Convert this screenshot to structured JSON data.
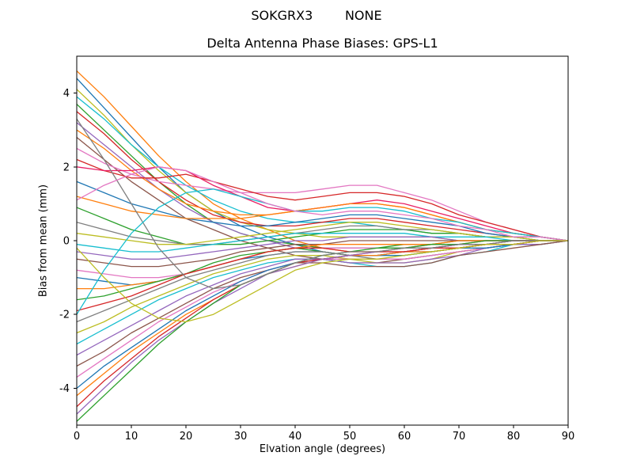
{
  "figure": {
    "suptitle": "SOKGRX3        NONE",
    "title": "Delta Antenna Phase Biases: GPS-L1",
    "xlabel": "Elvation angle (degrees)",
    "ylabel": "Bias from mean (mm)"
  },
  "chart_data": {
    "type": "line",
    "suptitle": "SOKGRX3        NONE",
    "title": "Delta Antenna Phase Biases: GPS-L1",
    "xlabel": "Elvation angle (degrees)",
    "ylabel": "Bias from mean (mm)",
    "xlim": [
      0,
      90
    ],
    "ylim": [
      -5,
      5
    ],
    "x_ticks": [
      0,
      10,
      20,
      30,
      40,
      50,
      60,
      70,
      80,
      90
    ],
    "y_ticks": [
      -4,
      -2,
      0,
      2,
      4
    ],
    "grid": false,
    "legend": "none",
    "frame_color": "#000000",
    "background": "#ffffff",
    "x": [
      0,
      5,
      10,
      15,
      20,
      25,
      30,
      35,
      40,
      45,
      50,
      55,
      60,
      65,
      70,
      75,
      80,
      85,
      90
    ],
    "series": [
      {
        "color": "#ff7f0e",
        "values": [
          4.6,
          3.9,
          3.1,
          2.3,
          1.6,
          1.0,
          0.6,
          0.3,
          0.0,
          -0.2,
          -0.3,
          -0.3,
          -0.2,
          -0.1,
          -0.1,
          0.0,
          0.0,
          0.0,
          0.0
        ]
      },
      {
        "color": "#1f77b4",
        "values": [
          4.4,
          3.6,
          2.8,
          2.0,
          1.3,
          0.8,
          0.4,
          0.1,
          -0.1,
          -0.3,
          -0.4,
          -0.4,
          -0.3,
          -0.2,
          -0.1,
          -0.1,
          0.0,
          0.0,
          0.0
        ]
      },
      {
        "color": "#bcbd22",
        "values": [
          4.1,
          3.4,
          2.6,
          1.9,
          1.3,
          0.8,
          0.5,
          0.3,
          0.2,
          0.1,
          0.1,
          0.1,
          0.1,
          0.1,
          0.0,
          0.0,
          0.0,
          0.0,
          0.0
        ]
      },
      {
        "color": "#17becf",
        "values": [
          3.9,
          3.3,
          2.6,
          2.0,
          1.5,
          1.1,
          0.8,
          0.6,
          0.5,
          0.5,
          0.5,
          0.4,
          0.3,
          0.2,
          0.2,
          0.1,
          0.1,
          0.0,
          0.0
        ]
      },
      {
        "color": "#2ca02c",
        "values": [
          3.7,
          3.0,
          2.3,
          1.6,
          1.0,
          0.5,
          0.2,
          0.0,
          -0.1,
          -0.2,
          -0.2,
          -0.2,
          -0.1,
          -0.1,
          0.0,
          0.0,
          0.0,
          0.0,
          0.0
        ]
      },
      {
        "color": "#d62728",
        "values": [
          3.5,
          2.9,
          2.2,
          1.6,
          1.1,
          0.7,
          0.5,
          0.4,
          0.4,
          0.5,
          0.6,
          0.6,
          0.5,
          0.4,
          0.3,
          0.2,
          0.1,
          0.1,
          0.0
        ]
      },
      {
        "color": "#9467bd",
        "values": [
          3.2,
          2.6,
          2.0,
          1.4,
          0.9,
          0.5,
          0.2,
          0.0,
          -0.2,
          -0.3,
          -0.4,
          -0.4,
          -0.3,
          -0.2,
          -0.1,
          -0.1,
          0.0,
          0.0,
          0.0
        ]
      },
      {
        "color": "#ff7f0e",
        "values": [
          3.0,
          2.5,
          1.9,
          1.4,
          1.0,
          0.8,
          0.7,
          0.7,
          0.8,
          0.9,
          1.0,
          1.0,
          0.9,
          0.7,
          0.5,
          0.3,
          0.2,
          0.1,
          0.0
        ]
      },
      {
        "color": "#8c564b",
        "values": [
          2.8,
          2.2,
          1.6,
          1.1,
          0.6,
          0.3,
          0.0,
          -0.2,
          -0.4,
          -0.5,
          -0.6,
          -0.6,
          -0.5,
          -0.4,
          -0.3,
          -0.2,
          -0.1,
          0.0,
          0.0
        ]
      },
      {
        "color": "#e377c2",
        "values": [
          2.5,
          2.1,
          1.8,
          1.6,
          1.5,
          1.4,
          1.3,
          1.3,
          1.3,
          1.4,
          1.5,
          1.5,
          1.3,
          1.1,
          0.8,
          0.5,
          0.3,
          0.1,
          0.0
        ]
      },
      {
        "color": "#d62728",
        "values": [
          2.2,
          1.9,
          1.7,
          1.7,
          1.8,
          1.6,
          1.4,
          1.2,
          1.1,
          1.2,
          1.3,
          1.3,
          1.2,
          1.0,
          0.7,
          0.5,
          0.3,
          0.1,
          0.0
        ]
      },
      {
        "color": "#e91e63",
        "values": [
          2.0,
          1.9,
          1.9,
          2.0,
          1.9,
          1.5,
          1.2,
          0.9,
          0.8,
          0.9,
          1.0,
          1.1,
          1.0,
          0.8,
          0.6,
          0.4,
          0.2,
          0.1,
          0.0
        ]
      },
      {
        "color": "#1f77b4",
        "values": [
          1.6,
          1.3,
          1.0,
          0.8,
          0.6,
          0.5,
          0.4,
          0.4,
          0.5,
          0.6,
          0.7,
          0.7,
          0.6,
          0.5,
          0.4,
          0.2,
          0.1,
          0.1,
          0.0
        ]
      },
      {
        "color": "#ff7f0e",
        "values": [
          1.2,
          1.0,
          0.8,
          0.7,
          0.6,
          0.6,
          0.6,
          0.7,
          0.8,
          0.9,
          1.0,
          1.0,
          0.9,
          0.7,
          0.5,
          0.3,
          0.2,
          0.1,
          0.0
        ]
      },
      {
        "color": "#2ca02c",
        "values": [
          0.9,
          0.6,
          0.3,
          0.1,
          -0.1,
          -0.1,
          -0.1,
          0.0,
          0.1,
          0.2,
          0.3,
          0.3,
          0.3,
          0.2,
          0.2,
          0.1,
          0.1,
          0.0,
          0.0
        ]
      },
      {
        "color": "#7f7f7f",
        "values": [
          0.5,
          0.3,
          0.1,
          0.0,
          -0.1,
          -0.1,
          0.0,
          0.1,
          0.2,
          0.3,
          0.4,
          0.4,
          0.3,
          0.3,
          0.2,
          0.1,
          0.1,
          0.0,
          0.0
        ]
      },
      {
        "color": "#bcbd22",
        "values": [
          0.2,
          0.1,
          0.0,
          -0.1,
          -0.1,
          0.0,
          0.1,
          0.2,
          0.3,
          0.4,
          0.5,
          0.5,
          0.4,
          0.3,
          0.2,
          0.1,
          0.1,
          0.0,
          0.0
        ]
      },
      {
        "color": "#17becf",
        "values": [
          -0.1,
          -0.2,
          -0.3,
          -0.3,
          -0.2,
          -0.1,
          0.0,
          0.1,
          0.2,
          0.2,
          0.2,
          0.2,
          0.2,
          0.1,
          0.1,
          0.1,
          0.0,
          0.0,
          0.0
        ]
      },
      {
        "color": "#9467bd",
        "values": [
          -0.3,
          -0.4,
          -0.5,
          -0.5,
          -0.4,
          -0.3,
          -0.2,
          -0.1,
          0.0,
          0.0,
          0.1,
          0.1,
          0.1,
          0.1,
          0.0,
          0.0,
          0.0,
          0.0,
          0.0
        ]
      },
      {
        "color": "#8c564b",
        "values": [
          -0.5,
          -0.6,
          -0.7,
          -0.7,
          -0.6,
          -0.5,
          -0.3,
          -0.2,
          -0.1,
          -0.1,
          0.0,
          0.0,
          0.0,
          0.0,
          0.0,
          0.0,
          0.0,
          0.0,
          0.0
        ]
      },
      {
        "color": "#e377c2",
        "values": [
          -0.8,
          -0.9,
          -1.0,
          -1.0,
          -0.9,
          -0.7,
          -0.5,
          -0.3,
          -0.2,
          -0.2,
          -0.2,
          -0.2,
          -0.2,
          -0.1,
          -0.1,
          0.0,
          0.0,
          0.0,
          0.0
        ]
      },
      {
        "color": "#1f77b4",
        "values": [
          -1.0,
          -1.1,
          -1.2,
          -1.1,
          -0.9,
          -0.7,
          -0.5,
          -0.4,
          -0.3,
          -0.3,
          -0.4,
          -0.4,
          -0.3,
          -0.3,
          -0.2,
          -0.1,
          -0.1,
          0.0,
          0.0
        ]
      },
      {
        "color": "#ff7f0e",
        "values": [
          -1.3,
          -1.3,
          -1.2,
          -1.1,
          -0.9,
          -0.7,
          -0.5,
          -0.3,
          -0.2,
          -0.1,
          -0.1,
          -0.1,
          -0.1,
          -0.1,
          0.0,
          0.0,
          0.0,
          0.0,
          0.0
        ]
      },
      {
        "color": "#2ca02c",
        "values": [
          -1.6,
          -1.5,
          -1.3,
          -1.1,
          -0.9,
          -0.6,
          -0.4,
          -0.3,
          -0.2,
          -0.3,
          -0.4,
          -0.4,
          -0.4,
          -0.3,
          -0.2,
          -0.1,
          -0.1,
          0.0,
          0.0
        ]
      },
      {
        "color": "#d62728",
        "values": [
          -1.9,
          -1.7,
          -1.5,
          -1.2,
          -0.9,
          -0.7,
          -0.5,
          -0.3,
          -0.2,
          -0.2,
          -0.3,
          -0.3,
          -0.3,
          -0.2,
          -0.2,
          -0.1,
          0.0,
          0.0,
          0.0
        ]
      },
      {
        "color": "#7f7f7f",
        "values": [
          -2.2,
          -1.9,
          -1.6,
          -1.3,
          -1.0,
          -0.8,
          -0.6,
          -0.4,
          -0.3,
          -0.3,
          -0.4,
          -0.5,
          -0.5,
          -0.4,
          -0.3,
          -0.2,
          -0.1,
          0.0,
          0.0
        ]
      },
      {
        "color": "#bcbd22",
        "values": [
          -2.5,
          -2.2,
          -1.8,
          -1.5,
          -1.2,
          -0.9,
          -0.7,
          -0.5,
          -0.4,
          -0.4,
          -0.5,
          -0.6,
          -0.6,
          -0.5,
          -0.3,
          -0.2,
          -0.1,
          -0.1,
          0.0
        ]
      },
      {
        "color": "#17becf",
        "values": [
          -2.8,
          -2.4,
          -2.0,
          -1.6,
          -1.3,
          -1.0,
          -0.8,
          -0.6,
          -0.5,
          -0.5,
          -0.6,
          -0.7,
          -0.7,
          -0.6,
          -0.4,
          -0.3,
          -0.1,
          -0.1,
          0.0
        ]
      },
      {
        "color": "#9467bd",
        "values": [
          -3.1,
          -2.7,
          -2.3,
          -1.9,
          -1.5,
          -1.2,
          -0.9,
          -0.7,
          -0.5,
          -0.5,
          -0.6,
          -0.6,
          -0.6,
          -0.5,
          -0.4,
          -0.2,
          -0.1,
          -0.1,
          0.0
        ]
      },
      {
        "color": "#8c564b",
        "values": [
          -3.4,
          -3.0,
          -2.5,
          -2.1,
          -1.7,
          -1.3,
          -1.0,
          -0.8,
          -0.6,
          -0.6,
          -0.7,
          -0.7,
          -0.7,
          -0.6,
          -0.4,
          -0.3,
          -0.2,
          -0.1,
          0.0
        ]
      },
      {
        "color": "#e377c2",
        "values": [
          -3.7,
          -3.2,
          -2.7,
          -2.2,
          -1.8,
          -1.4,
          -1.1,
          -0.8,
          -0.6,
          -0.5,
          -0.5,
          -0.5,
          -0.5,
          -0.4,
          -0.3,
          -0.2,
          -0.1,
          0.0,
          0.0
        ]
      },
      {
        "color": "#1f77b4",
        "values": [
          -4.0,
          -3.4,
          -2.9,
          -2.4,
          -1.9,
          -1.5,
          -1.1,
          -0.8,
          -0.6,
          -0.5,
          -0.4,
          -0.4,
          -0.4,
          -0.3,
          -0.2,
          -0.2,
          -0.1,
          0.0,
          0.0
        ]
      },
      {
        "color": "#ff7f0e",
        "values": [
          -4.2,
          -3.6,
          -3.0,
          -2.5,
          -2.0,
          -1.6,
          -1.2,
          -0.9,
          -0.7,
          -0.5,
          -0.4,
          -0.4,
          -0.3,
          -0.3,
          -0.2,
          -0.1,
          -0.1,
          0.0,
          0.0
        ]
      },
      {
        "color": "#d62728",
        "values": [
          -4.5,
          -3.8,
          -3.2,
          -2.6,
          -2.1,
          -1.6,
          -1.2,
          -0.9,
          -0.6,
          -0.5,
          -0.4,
          -0.3,
          -0.3,
          -0.2,
          -0.2,
          -0.1,
          -0.1,
          0.0,
          0.0
        ]
      },
      {
        "color": "#9467bd",
        "values": [
          -4.7,
          -4.0,
          -3.3,
          -2.7,
          -2.2,
          -1.7,
          -1.3,
          -0.9,
          -0.7,
          -0.5,
          -0.4,
          -0.3,
          -0.2,
          -0.2,
          -0.1,
          -0.1,
          0.0,
          0.0,
          0.0
        ]
      },
      {
        "color": "#2ca02c",
        "values": [
          -4.9,
          -4.2,
          -3.5,
          -2.8,
          -2.2,
          -1.7,
          -1.2,
          -0.9,
          -0.6,
          -0.4,
          -0.3,
          -0.2,
          -0.2,
          -0.1,
          -0.1,
          0.0,
          0.0,
          0.0,
          0.0
        ]
      },
      {
        "color": "#7f7f7f",
        "values": [
          3.3,
          2.2,
          1.0,
          -0.2,
          -1.0,
          -1.3,
          -1.2,
          -0.9,
          -0.6,
          -0.4,
          -0.3,
          -0.3,
          -0.2,
          -0.2,
          -0.1,
          -0.1,
          0.0,
          0.0,
          0.0
        ]
      },
      {
        "color": "#17becf",
        "values": [
          -2.0,
          -0.8,
          0.2,
          0.9,
          1.3,
          1.4,
          1.2,
          1.0,
          0.8,
          0.8,
          0.9,
          0.9,
          0.8,
          0.6,
          0.5,
          0.3,
          0.2,
          0.1,
          0.0
        ]
      },
      {
        "color": "#e377c2",
        "values": [
          1.1,
          1.5,
          1.8,
          2.0,
          1.9,
          1.6,
          1.3,
          1.0,
          0.8,
          0.7,
          0.8,
          0.8,
          0.7,
          0.6,
          0.4,
          0.3,
          0.1,
          0.1,
          0.0
        ]
      },
      {
        "color": "#bcbd22",
        "values": [
          -0.2,
          -1.0,
          -1.7,
          -2.1,
          -2.2,
          -2.0,
          -1.6,
          -1.2,
          -0.8,
          -0.6,
          -0.5,
          -0.5,
          -0.4,
          -0.3,
          -0.2,
          -0.1,
          -0.1,
          0.0,
          0.0
        ]
      }
    ]
  }
}
